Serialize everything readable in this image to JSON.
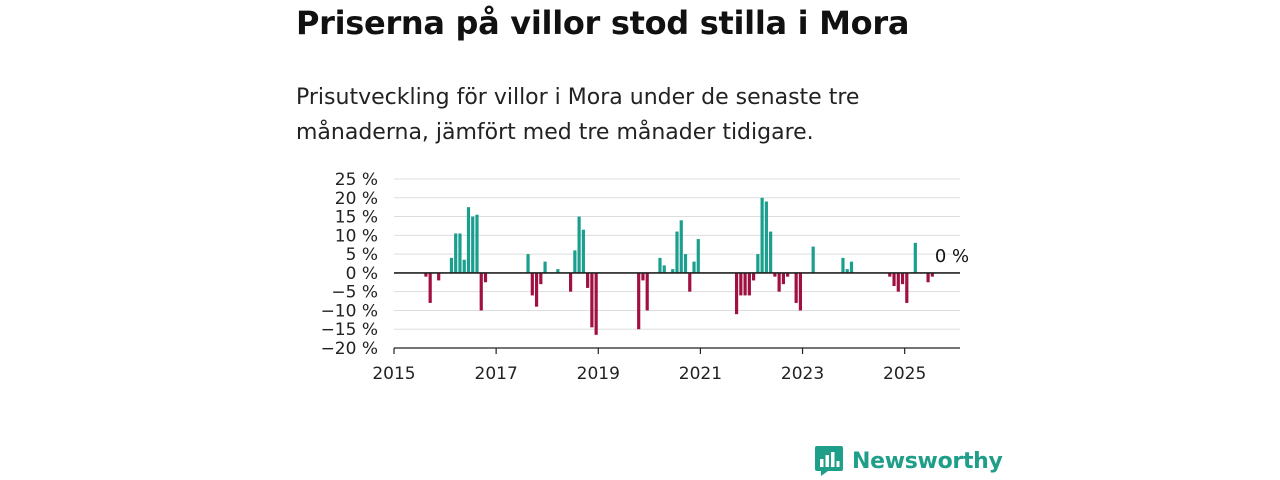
{
  "title": "Priserna på villor stod stilla i Mora",
  "subtitle": "Prisutveckling för villor i Mora under de senaste tre månaderna, jämfört med tre månader tidigare.",
  "brand": {
    "name": "Newsworthy",
    "icon": "newsworthy-logo-icon"
  },
  "colors": {
    "positive": "#1a9e8d",
    "negative": "#a01040",
    "grid": "#dddddd",
    "axis": "#222222",
    "brand": "#1f9e89"
  },
  "chart_data": {
    "type": "bar",
    "title": "Priserna på villor stod stilla i Mora",
    "subtitle": "Prisutveckling för villor i Mora under de senaste tre månaderna, jämfört med tre månader tidigare.",
    "xlabel": "",
    "ylabel": "",
    "unit": "%",
    "ylim": [
      -20,
      25
    ],
    "yticks": [
      25,
      20,
      15,
      10,
      5,
      0,
      -5,
      -10,
      -15,
      -20
    ],
    "ytick_labels": [
      "25 %",
      "20 %",
      "15 %",
      "10 %",
      "5 %",
      "0 %",
      "−5 %",
      "−10 %",
      "−15 %",
      "−20 %"
    ],
    "xlim": [
      "2015-01",
      "2026-02"
    ],
    "xticks": [
      "2015",
      "2017",
      "2019",
      "2021",
      "2023",
      "2025"
    ],
    "end_label": "0 %",
    "grid": true,
    "series": [
      {
        "values": [
          [
            "2015-08",
            -1
          ],
          [
            "2015-09",
            -8
          ],
          [
            "2015-11",
            -2
          ],
          [
            "2016-02",
            4
          ],
          [
            "2016-03",
            10.5
          ],
          [
            "2016-04",
            10.5
          ],
          [
            "2016-05",
            3.5
          ],
          [
            "2016-06",
            17.5
          ],
          [
            "2016-07",
            15
          ],
          [
            "2016-08",
            15.5
          ],
          [
            "2016-09",
            -10
          ],
          [
            "2016-10",
            -2.5
          ],
          [
            "2017-08",
            5
          ],
          [
            "2017-09",
            -6
          ],
          [
            "2017-10",
            -9
          ],
          [
            "2017-11",
            -3
          ],
          [
            "2017-12",
            3
          ],
          [
            "2018-03",
            1
          ],
          [
            "2018-06",
            -5
          ],
          [
            "2018-07",
            6
          ],
          [
            "2018-08",
            15
          ],
          [
            "2018-09",
            11.5
          ],
          [
            "2018-10",
            -4
          ],
          [
            "2018-11",
            -14.5
          ],
          [
            "2018-12",
            -16.5
          ],
          [
            "2019-10",
            -15
          ],
          [
            "2019-11",
            -2
          ],
          [
            "2019-12",
            -10
          ],
          [
            "2020-03",
            4
          ],
          [
            "2020-04",
            2
          ],
          [
            "2020-06",
            1
          ],
          [
            "2020-07",
            11
          ],
          [
            "2020-08",
            14
          ],
          [
            "2020-09",
            5
          ],
          [
            "2020-10",
            -5
          ],
          [
            "2020-11",
            3
          ],
          [
            "2020-12",
            9
          ],
          [
            "2021-09",
            -11
          ],
          [
            "2021-10",
            -6
          ],
          [
            "2021-11",
            -6
          ],
          [
            "2021-12",
            -6
          ],
          [
            "2022-01",
            -2
          ],
          [
            "2022-02",
            5
          ],
          [
            "2022-03",
            20
          ],
          [
            "2022-04",
            19
          ],
          [
            "2022-05",
            11
          ],
          [
            "2022-06",
            -1
          ],
          [
            "2022-07",
            -5
          ],
          [
            "2022-08",
            -3
          ],
          [
            "2022-09",
            -1
          ],
          [
            "2022-11",
            -8
          ],
          [
            "2022-12",
            -10
          ],
          [
            "2023-03",
            7
          ],
          [
            "2023-10",
            4
          ],
          [
            "2023-11",
            1
          ],
          [
            "2023-12",
            3
          ],
          [
            "2024-09",
            -1
          ],
          [
            "2024-10",
            -3.5
          ],
          [
            "2024-11",
            -5
          ],
          [
            "2024-12",
            -3
          ],
          [
            "2025-01",
            -8
          ],
          [
            "2025-03",
            8
          ],
          [
            "2025-06",
            -2.5
          ],
          [
            "2025-07",
            -1
          ],
          [
            "2025-09",
            0
          ]
        ]
      }
    ]
  }
}
